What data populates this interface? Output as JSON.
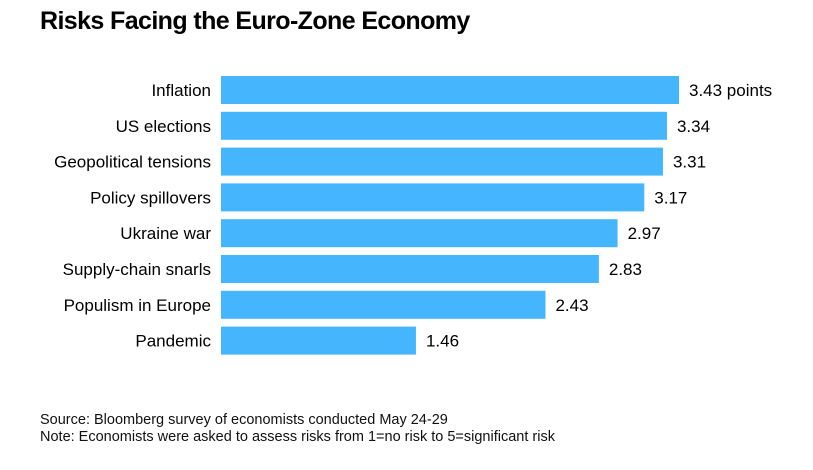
{
  "title": "Risks Facing the Euro-Zone Economy",
  "chart_data": {
    "type": "bar",
    "orientation": "horizontal",
    "title": "Risks Facing the Euro-Zone Economy",
    "categories": [
      "Inflation",
      "US elections",
      "Geopolitical tensions",
      "Policy spillovers",
      "Ukraine war",
      "Supply-chain snarls",
      "Populism in Europe",
      "Pandemic"
    ],
    "values": [
      3.43,
      3.34,
      3.31,
      3.17,
      2.97,
      2.83,
      2.43,
      1.46
    ],
    "data_labels": [
      "3.43 points",
      "3.34",
      "3.31",
      "3.17",
      "2.97",
      "2.83",
      "2.43",
      "1.46"
    ],
    "xlim": [
      0,
      3.43
    ],
    "grid": false,
    "bar_color": "#45b6fe"
  },
  "footer": {
    "source": "Source: Bloomberg survey of economists conducted May 24-29",
    "note": "Note: Economists were asked to assess risks from 1=no risk to 5=significant risk"
  }
}
